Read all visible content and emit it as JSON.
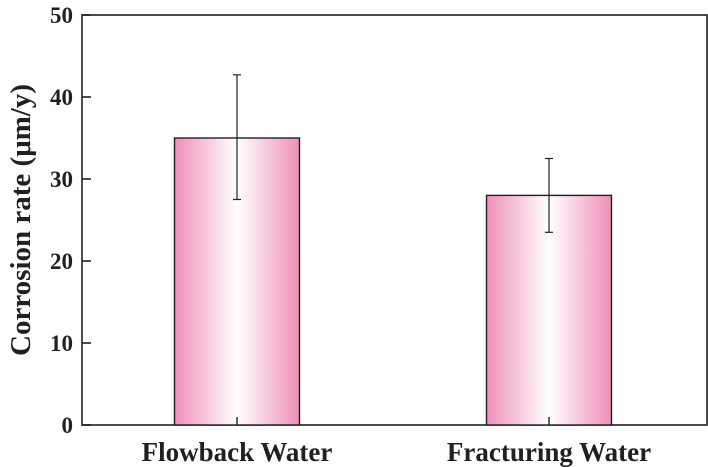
{
  "chart_data": {
    "type": "bar",
    "categories": [
      "Flowback Water",
      "Fracturing Water"
    ],
    "values": [
      35.0,
      28.0
    ],
    "error": {
      "low": [
        27.5,
        23.5
      ],
      "high": [
        42.7,
        32.5
      ]
    },
    "title": "",
    "xlabel": "",
    "ylabel": "Corrosion rate (μm/y)",
    "ylim": [
      0,
      50
    ],
    "yticks": [
      0,
      10,
      20,
      30,
      40,
      50
    ],
    "ytick_labels": [
      "0",
      "10",
      "20",
      "30",
      "40",
      "50"
    ],
    "grid": false,
    "legend": "none",
    "colors": {
      "bar_edge": "#ef8fb8",
      "bar_center": "#ffffff",
      "outline": "#231f20"
    }
  }
}
